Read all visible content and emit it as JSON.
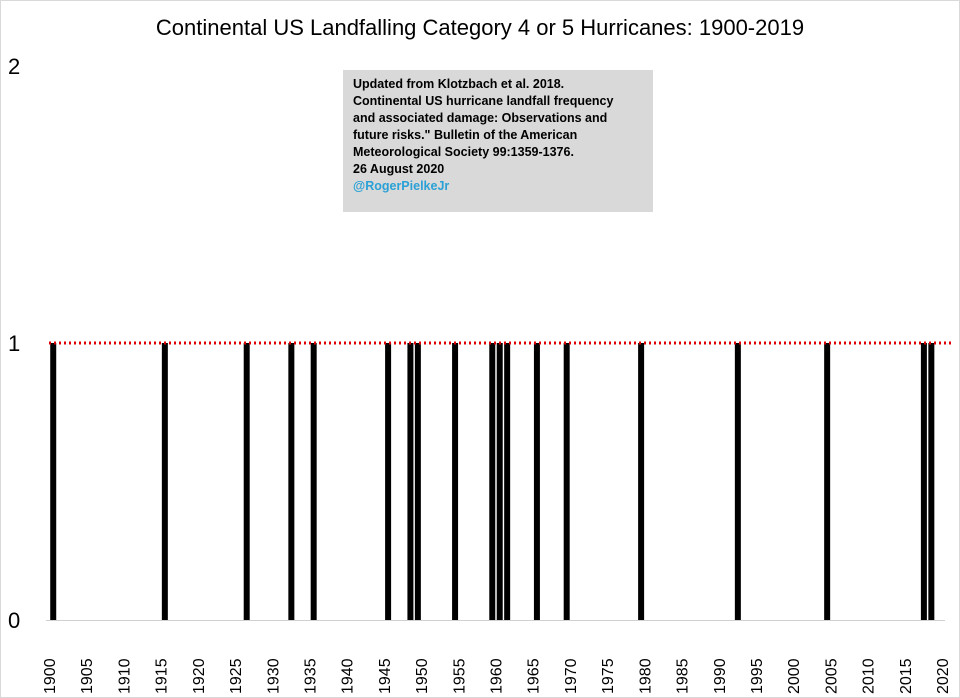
{
  "chart_data": {
    "type": "bar",
    "title": "Continental US Landfalling Category 4 or 5 Hurricanes: 1900-2019",
    "xlabel": "",
    "ylabel": "",
    "xlim": [
      1900,
      2020
    ],
    "ylim": [
      0,
      2
    ],
    "y_ticks": [
      "0",
      "1",
      "2"
    ],
    "x_ticks": [
      "1900",
      "1905",
      "1910",
      "1915",
      "1920",
      "1925",
      "1930",
      "1935",
      "1940",
      "1945",
      "1950",
      "1955",
      "1960",
      "1965",
      "1970",
      "1975",
      "1980",
      "1985",
      "1990",
      "1995",
      "2000",
      "2005",
      "2010",
      "2015",
      "2020"
    ],
    "years": [
      1900,
      1915,
      1926,
      1932,
      1935,
      1945,
      1948,
      1949,
      1954,
      1959,
      1960,
      1961,
      1965,
      1969,
      1979,
      1992,
      2004,
      2017,
      2018
    ],
    "values": [
      1,
      1,
      1,
      1,
      1,
      1,
      1,
      1,
      1,
      1,
      1,
      1,
      1,
      1,
      1,
      1,
      1,
      1,
      1
    ],
    "reference_line": {
      "value": 1,
      "style": "dotted",
      "color": "#e00000"
    },
    "bar_color": "#000000",
    "grid": false,
    "annotation": {
      "lines": [
        "Updated from Klotzbach et al. 2018.",
        "Continental US hurricane landfall frequency",
        "and associated damage: Observations and",
        "future risks.\" Bulletin of the American",
        "Meteorological Society 99:1359-1376.",
        "26 August 2020"
      ],
      "handle": "@RogerPielkeJr",
      "background": "#d9d9d9",
      "handle_color": "#2aa1d6"
    }
  }
}
